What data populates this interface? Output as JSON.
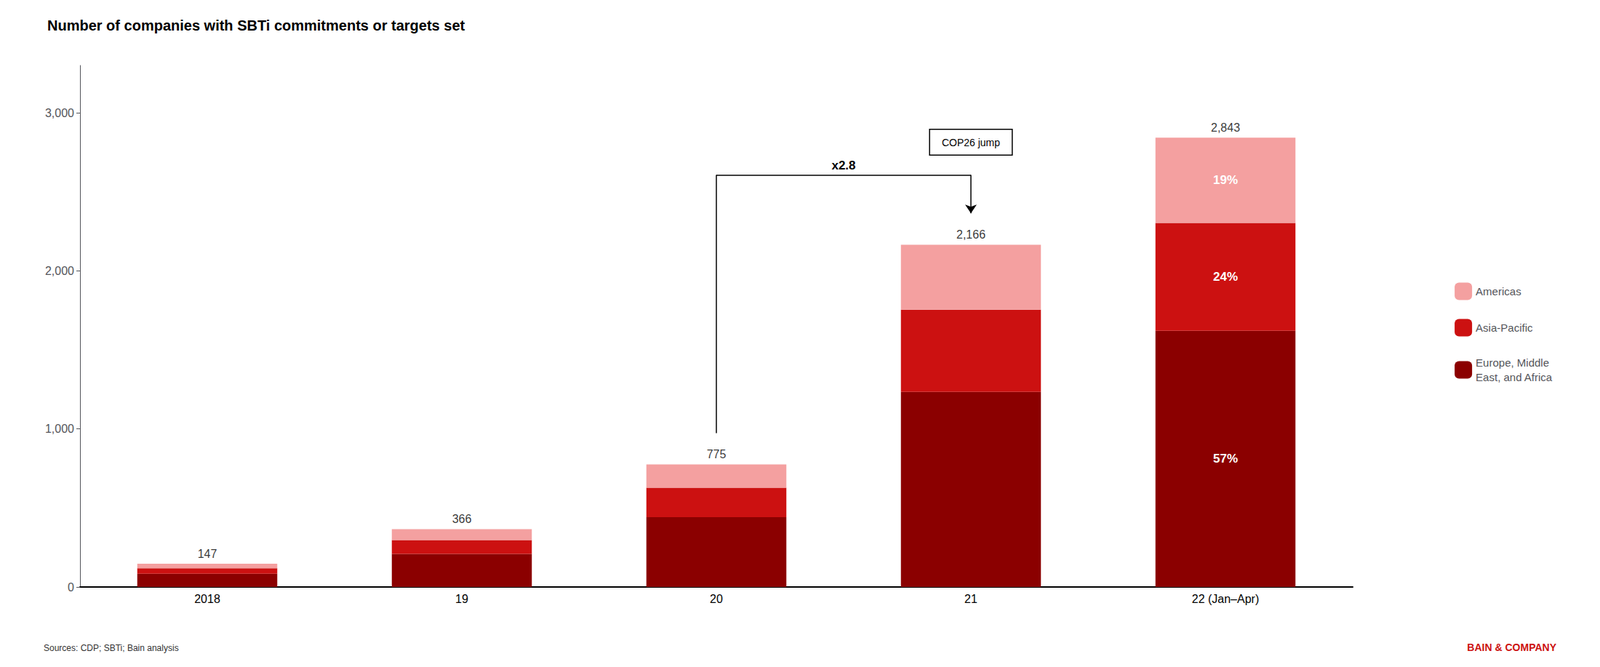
{
  "chart_data": {
    "type": "bar",
    "title": "Number of companies with SBTi commitments or targets set",
    "categories": [
      "2018",
      "19",
      "20",
      "21",
      "22 (Jan–Apr)"
    ],
    "stacked": true,
    "series": [
      {
        "name": "Europe, Middle\nEast, and Africa",
        "color": "#8B0000",
        "values": [
          84,
          209,
          442,
          1235,
          1621
        ],
        "inside_label": {
          "category": "22 (Jan–Apr)",
          "text": "57%"
        }
      },
      {
        "name": "Asia-Pacific",
        "color": "#CC1111",
        "values": [
          35,
          88,
          186,
          520,
          682
        ],
        "inside_label": {
          "category": "22 (Jan–Apr)",
          "text": "24%"
        }
      },
      {
        "name": "Americas",
        "color": "#F4A0A0",
        "values": [
          28,
          69,
          147,
          411,
          540
        ],
        "inside_label": {
          "category": "22 (Jan–Apr)",
          "text": "19%"
        }
      }
    ],
    "totals": [
      147,
      366,
      775,
      2166,
      2843
    ],
    "total_labels": [
      "147",
      "366",
      "775",
      "2,166",
      "2,843"
    ],
    "annotations": {
      "ratio": "x2.8",
      "event": "COP26 jump",
      "from": "20",
      "to": "21"
    },
    "ylim": [
      0,
      3300
    ],
    "yticks": [
      0,
      {
        "value": 1000,
        "label": "1,000"
      },
      {
        "value": 2000,
        "label": "2,000"
      },
      {
        "value": 3000,
        "label": "3,000"
      }
    ],
    "grid": false,
    "legend": "right",
    "source": "Sources: CDP; SBTi; Bain analysis",
    "brand": "BAIN & COMPANY"
  }
}
